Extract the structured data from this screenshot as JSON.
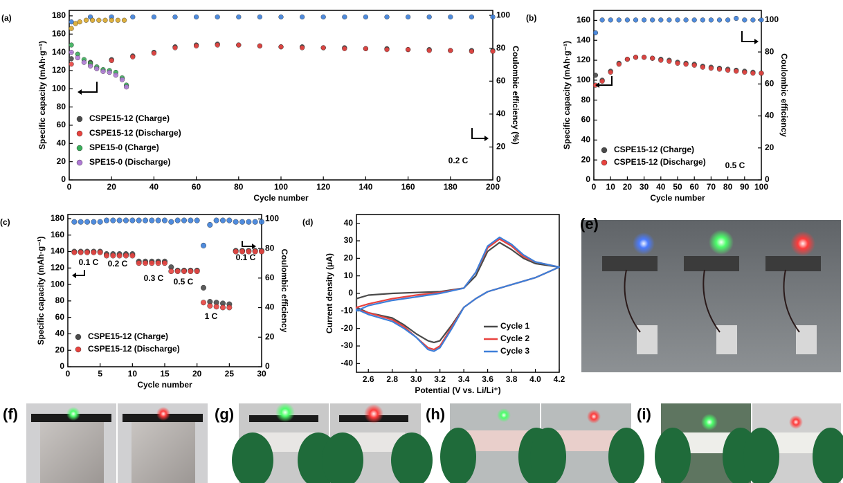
{
  "chart_data": [
    {
      "type": "scatter",
      "panel_label": "(a)",
      "x_label": "Cycle number",
      "y_label": "Specific capacity (mAh·g⁻¹)",
      "y2_label": "Coulombic efficiency (%)",
      "xlim": [
        0,
        200
      ],
      "xticks": [
        0,
        20,
        40,
        60,
        80,
        100,
        120,
        140,
        160,
        180,
        200
      ],
      "ylim": [
        0,
        186
      ],
      "yticks": [
        0,
        20,
        40,
        60,
        80,
        100,
        120,
        140,
        160,
        180
      ],
      "y2lim": [
        0,
        103
      ],
      "y2ticks": [
        0,
        20,
        40,
        60,
        80,
        100
      ],
      "legend": "lower left",
      "annotations": [
        "0.2 C"
      ],
      "series": [
        {
          "name": "CSPE15-12 (Charge)",
          "color": "#4a4a4a",
          "x": [
            1,
            10,
            20,
            30,
            40,
            50,
            60,
            70,
            80,
            90,
            100,
            110,
            120,
            130,
            140,
            150,
            160,
            170,
            180,
            190,
            200
          ],
          "values": [
            133,
            129,
            132,
            136,
            140,
            146,
            148,
            149,
            148,
            147,
            146,
            146,
            145,
            145,
            144,
            144,
            143,
            143,
            142,
            142,
            142
          ]
        },
        {
          "name": "CSPE15-12 (Discharge)",
          "color": "#e8433f",
          "x": [
            1,
            10,
            20,
            30,
            40,
            50,
            60,
            70,
            80,
            90,
            100,
            110,
            120,
            130,
            140,
            150,
            160,
            170,
            180,
            190,
            200
          ],
          "values": [
            127,
            128,
            131,
            135,
            139,
            145,
            147,
            148,
            148,
            147,
            146,
            145,
            145,
            144,
            144,
            143,
            143,
            142,
            142,
            141,
            141
          ]
        },
        {
          "name": "SPE15-0 (Charge)",
          "color": "#3aae5a",
          "x": [
            1,
            4,
            7,
            10,
            13,
            16,
            19,
            22,
            25,
            27
          ],
          "values": [
            148,
            138,
            132,
            128,
            124,
            121,
            120,
            118,
            112,
            104
          ]
        },
        {
          "name": "SPE15-0 (Discharge)",
          "color": "#b07ad6",
          "x": [
            1,
            4,
            7,
            10,
            13,
            16,
            19,
            22,
            25,
            27
          ],
          "values": [
            140,
            134,
            129,
            125,
            122,
            119,
            118,
            115,
            110,
            102
          ]
        },
        {
          "color": "#3d7fd9",
          "axis": "y2",
          "x": [
            1,
            10,
            20,
            30,
            40,
            50,
            60,
            70,
            80,
            90,
            100,
            110,
            120,
            130,
            140,
            150,
            160,
            170,
            180,
            190,
            200
          ],
          "values": [
            96,
            99,
            99,
            99,
            99,
            99,
            99,
            99,
            99,
            99,
            99,
            99,
            99,
            99,
            99,
            99,
            99,
            99,
            99,
            99,
            99
          ]
        },
        {
          "color": "#d9a72a",
          "axis": "y2",
          "x": [
            1,
            3,
            5,
            8,
            11,
            14,
            17,
            20,
            23,
            26
          ],
          "values": [
            92,
            95,
            96,
            97,
            97,
            97,
            97,
            97,
            97,
            97
          ]
        }
      ]
    },
    {
      "type": "scatter",
      "panel_label": "(b)",
      "x_label": "Cycle number",
      "y_label": "Specific capacity (mAh·g⁻¹)",
      "y2_label": "Coulombic efficiency",
      "xlim": [
        0,
        100
      ],
      "xticks": [
        0,
        10,
        20,
        30,
        40,
        50,
        60,
        70,
        80,
        90,
        100
      ],
      "ylim": [
        0,
        170
      ],
      "yticks": [
        0,
        20,
        40,
        60,
        80,
        100,
        120,
        140,
        160
      ],
      "y2lim": [
        0,
        106
      ],
      "y2ticks": [
        0,
        20,
        40,
        60,
        80,
        100
      ],
      "legend": "lower left",
      "annotations": [
        "0.5 C"
      ],
      "series": [
        {
          "name": "CSPE15-12 (Charge)",
          "color": "#4a4a4a",
          "x": [
            1,
            5,
            10,
            15,
            20,
            25,
            30,
            35,
            40,
            45,
            50,
            55,
            60,
            65,
            70,
            75,
            80,
            85,
            90,
            95,
            100
          ],
          "values": [
            105,
            100,
            109,
            117,
            121,
            123,
            123,
            122,
            121,
            120,
            118,
            117,
            116,
            114,
            113,
            112,
            111,
            110,
            109,
            108,
            107
          ]
        },
        {
          "name": "CSPE15-12 (Discharge)",
          "color": "#e8433f",
          "x": [
            1,
            5,
            10,
            15,
            20,
            25,
            30,
            35,
            40,
            45,
            50,
            55,
            60,
            65,
            70,
            75,
            80,
            85,
            90,
            95,
            100
          ],
          "values": [
            95,
            99,
            108,
            116,
            121,
            123,
            123,
            122,
            120,
            119,
            117,
            116,
            115,
            113,
            112,
            111,
            110,
            109,
            108,
            107,
            107
          ]
        },
        {
          "color": "#3d7fd9",
          "axis": "y2",
          "x": [
            1,
            5,
            10,
            15,
            20,
            25,
            30,
            35,
            40,
            45,
            50,
            55,
            60,
            65,
            70,
            75,
            80,
            85,
            90,
            95,
            100
          ],
          "values": [
            92,
            100,
            100,
            100,
            100,
            100,
            100,
            100,
            100,
            100,
            100,
            100,
            100,
            100,
            100,
            100,
            100,
            101,
            100,
            100,
            100
          ]
        }
      ]
    },
    {
      "type": "scatter",
      "panel_label": "(c)",
      "x_label": "Cycle number",
      "y_label": "Specific capacity (mAh·g⁻¹)",
      "y2_label": "Coulombic efficiency",
      "xlim": [
        0,
        30
      ],
      "xticks": [
        0,
        5,
        10,
        15,
        20,
        25,
        30
      ],
      "ylim": [
        0,
        185
      ],
      "yticks": [
        0,
        20,
        40,
        60,
        80,
        100,
        120,
        140,
        160,
        180
      ],
      "y2lim": [
        0,
        103
      ],
      "y2ticks": [
        0,
        20,
        40,
        60,
        80,
        100
      ],
      "legend": "lower left",
      "annotations": [
        "0.1 C",
        "0.2 C",
        "0.3 C",
        "0.5 C",
        "1 C",
        "0.1 C"
      ],
      "series": [
        {
          "name": "CSPE15-12 (Charge)",
          "color": "#4a4a4a",
          "x": [
            1,
            2,
            3,
            4,
            5,
            6,
            7,
            8,
            9,
            10,
            11,
            12,
            13,
            14,
            15,
            16,
            17,
            18,
            19,
            20,
            21,
            22,
            23,
            24,
            25,
            26,
            27,
            28,
            29,
            30
          ],
          "values": [
            140,
            140,
            140,
            140,
            140,
            137,
            137,
            137,
            137,
            137,
            128,
            128,
            128,
            128,
            128,
            121,
            117,
            117,
            117,
            117,
            96,
            79,
            78,
            77,
            76,
            141,
            141,
            141,
            141,
            141
          ]
        },
        {
          "name": "CSPE15-12 (Discharge)",
          "color": "#e8433f",
          "x": [
            1,
            2,
            3,
            4,
            5,
            6,
            7,
            8,
            9,
            10,
            11,
            12,
            13,
            14,
            15,
            16,
            17,
            18,
            19,
            20,
            21,
            22,
            23,
            24,
            25,
            26,
            27,
            28,
            29,
            30
          ],
          "values": [
            139,
            139,
            139,
            139,
            139,
            135,
            135,
            135,
            135,
            135,
            126,
            126,
            126,
            126,
            126,
            116,
            116,
            116,
            116,
            116,
            78,
            74,
            73,
            72,
            72,
            140,
            140,
            140,
            140,
            140
          ]
        },
        {
          "color": "#3d7fd9",
          "axis": "y2",
          "x": [
            1,
            2,
            3,
            4,
            5,
            6,
            7,
            8,
            9,
            10,
            11,
            12,
            13,
            14,
            15,
            16,
            17,
            18,
            19,
            20,
            21,
            22,
            23,
            24,
            25,
            26,
            27,
            28,
            29,
            30
          ],
          "values": [
            98,
            98,
            98,
            98,
            98,
            99,
            99,
            99,
            99,
            99,
            99,
            99,
            99,
            99,
            99,
            98,
            99,
            99,
            99,
            99,
            82,
            96,
            99,
            99,
            99,
            98,
            98,
            98,
            98,
            98
          ]
        }
      ]
    },
    {
      "type": "line",
      "panel_label": "(d)",
      "x_label": "Potential (V vs. Li/Li⁺)",
      "y_label": "Current density (μA)",
      "xlim": [
        2.5,
        4.2
      ],
      "xticks": [
        2.6,
        2.8,
        {
          "value": 3,
          "label": "3.0"
        },
        3.2,
        3.4,
        3.6,
        3.8,
        {
          "value": 4,
          "label": "4.0"
        },
        4.2
      ],
      "ylim": [
        -45,
        45
      ],
      "yticks": [
        -40,
        -30,
        -20,
        -10,
        0,
        10,
        20,
        30,
        40
      ],
      "legend": "lower right",
      "series": [
        {
          "name": "Cycle 1",
          "color": "#4a4a4a",
          "x": [
            2.5,
            2.6,
            2.8,
            3.0,
            3.2,
            3.4,
            3.5,
            3.6,
            3.7,
            3.8,
            3.9,
            4.0,
            4.2,
            4.1,
            4.0,
            3.9,
            3.8,
            3.6,
            3.5,
            3.4,
            3.3,
            3.2,
            3.15,
            3.1,
            3.0,
            2.9,
            2.8,
            2.6,
            2.5
          ],
          "values": [
            -3,
            -1,
            0,
            0.5,
            1,
            3,
            10,
            24,
            29,
            25,
            20,
            17,
            15,
            12,
            9,
            7,
            5,
            1,
            -3,
            -8,
            -18,
            -27,
            -28,
            -27,
            -23,
            -18,
            -14,
            -11,
            -8
          ]
        },
        {
          "name": "Cycle 2",
          "color": "#e8433f",
          "x": [
            2.5,
            2.6,
            2.8,
            3.0,
            3.2,
            3.4,
            3.5,
            3.6,
            3.7,
            3.8,
            3.9,
            4.0,
            4.2,
            4.1,
            4.0,
            3.9,
            3.8,
            3.6,
            3.5,
            3.4,
            3.3,
            3.2,
            3.15,
            3.1,
            3.0,
            2.9,
            2.8,
            2.6,
            2.5
          ],
          "values": [
            -8,
            -6,
            -3,
            -1,
            0.5,
            3,
            12,
            26,
            31,
            27,
            21,
            18,
            15,
            12,
            9,
            7,
            5,
            1,
            -3,
            -8,
            -19,
            -30,
            -32,
            -31,
            -25,
            -19,
            -15,
            -11,
            -9
          ]
        },
        {
          "name": "Cycle 3",
          "color": "#3d7fd9",
          "x": [
            2.5,
            2.6,
            2.8,
            3.0,
            3.2,
            3.4,
            3.5,
            3.6,
            3.7,
            3.8,
            3.9,
            4.0,
            4.2,
            4.1,
            4.0,
            3.9,
            3.8,
            3.6,
            3.5,
            3.4,
            3.3,
            3.2,
            3.15,
            3.1,
            3.0,
            2.9,
            2.8,
            2.6,
            2.5
          ],
          "values": [
            -10,
            -7,
            -4,
            -2,
            0,
            3,
            12,
            27,
            32,
            28,
            22,
            18,
            15,
            12,
            9,
            7,
            5,
            1,
            -3,
            -8,
            -20,
            -31,
            -33,
            -32,
            -25,
            -20,
            -16,
            -12,
            -9
          ]
        }
      ]
    }
  ],
  "photo_labels": [
    "(e)",
    "(f)",
    "(g)",
    "(h)",
    "(i)"
  ]
}
